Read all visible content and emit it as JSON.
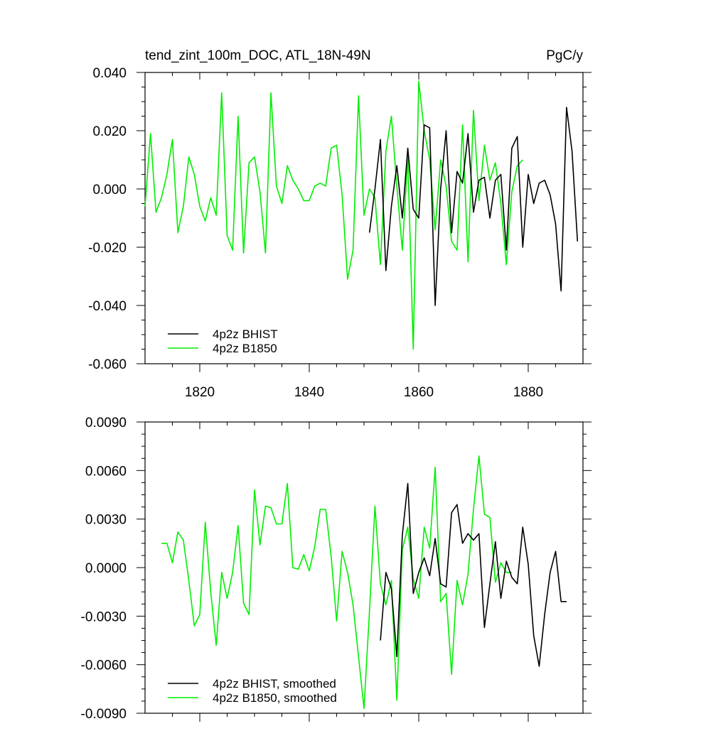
{
  "chart_data": [
    {
      "type": "line",
      "title": "tend_zint_100m_DOC, ATL_18N-49N",
      "units": "PgC/y",
      "xlim": [
        1810,
        1890
      ],
      "ylim": [
        -0.06,
        0.04
      ],
      "xticks": [
        1820,
        1840,
        1860,
        1880
      ],
      "xtick_labels": [
        "1820",
        "1840",
        "1860",
        "1880"
      ],
      "yticks": [
        -0.06,
        -0.04,
        -0.02,
        0.0,
        0.02,
        0.04
      ],
      "ytick_labels": [
        "-0.060",
        "-0.040",
        "-0.020",
        "0.000",
        "0.020",
        "0.040"
      ],
      "legend_placement": "bottom-left",
      "series": [
        {
          "name": "4p2z BHIST",
          "color": "#000000",
          "x": [
            1851,
            1852,
            1853,
            1854,
            1855,
            1856,
            1857,
            1858,
            1859,
            1860,
            1861,
            1862,
            1863,
            1864,
            1865,
            1866,
            1867,
            1868,
            1869,
            1870,
            1871,
            1872,
            1873,
            1874,
            1875,
            1876,
            1877,
            1878,
            1879,
            1880,
            1881,
            1882,
            1883,
            1884,
            1885,
            1886,
            1887,
            1888,
            1889
          ],
          "y": [
            -0.015,
            0.0,
            0.017,
            -0.028,
            -0.006,
            0.008,
            -0.01,
            0.014,
            -0.007,
            -0.01,
            0.022,
            0.021,
            -0.04,
            0.0,
            0.02,
            -0.015,
            0.006,
            0.002,
            0.019,
            -0.008,
            0.003,
            0.004,
            -0.01,
            0.003,
            0.005,
            -0.021,
            0.014,
            0.018,
            -0.02,
            0.005,
            -0.005,
            0.002,
            0.003,
            -0.002,
            -0.012,
            -0.035,
            0.028,
            0.013,
            -0.018
          ]
        },
        {
          "name": "4p2z B1850",
          "color": "#00ee00",
          "x": [
            1810,
            1811,
            1812,
            1813,
            1814,
            1815,
            1816,
            1817,
            1818,
            1819,
            1820,
            1821,
            1822,
            1823,
            1824,
            1825,
            1826,
            1827,
            1828,
            1829,
            1830,
            1831,
            1832,
            1833,
            1834,
            1835,
            1836,
            1837,
            1838,
            1839,
            1840,
            1841,
            1842,
            1843,
            1844,
            1845,
            1846,
            1847,
            1848,
            1849,
            1850,
            1851,
            1852,
            1853,
            1854,
            1855,
            1856,
            1857,
            1858,
            1859,
            1860,
            1861,
            1862,
            1863,
            1864,
            1865,
            1866,
            1867,
            1868,
            1869,
            1870,
            1871,
            1872,
            1873,
            1874,
            1875,
            1876,
            1877,
            1878,
            1879
          ],
          "y": [
            -0.006,
            0.019,
            -0.008,
            -0.003,
            0.005,
            0.017,
            -0.015,
            -0.006,
            0.011,
            0.005,
            -0.006,
            -0.011,
            -0.003,
            -0.009,
            0.033,
            -0.016,
            -0.021,
            0.025,
            -0.022,
            0.009,
            0.011,
            -0.001,
            -0.022,
            0.033,
            0.001,
            -0.005,
            0.008,
            0.003,
            0.0,
            -0.004,
            -0.004,
            0.001,
            0.002,
            0.001,
            0.014,
            0.015,
            -0.002,
            -0.031,
            -0.021,
            0.032,
            -0.009,
            0.0,
            -0.003,
            -0.026,
            0.013,
            0.025,
            0.001,
            -0.021,
            0.011,
            -0.055,
            0.037,
            0.02,
            0.01,
            -0.014,
            0.01,
            0.001,
            -0.018,
            -0.021,
            0.022,
            -0.025,
            0.027,
            -0.004,
            0.015,
            0.003,
            0.009,
            -0.005,
            -0.026,
            -0.001,
            0.008,
            0.01
          ]
        }
      ]
    },
    {
      "type": "line",
      "title": "",
      "xlim": [
        1810,
        1890
      ],
      "ylim": [
        -0.009,
        0.009
      ],
      "xticks": [
        1820,
        1840,
        1860,
        1880
      ],
      "yticks": [
        -0.009,
        -0.006,
        -0.003,
        0.0,
        0.003,
        0.006,
        0.009
      ],
      "ytick_labels": [
        "-0.0090",
        "-0.0060",
        "-0.0030",
        "0.0000",
        "0.0030",
        "0.0060",
        "0.0090"
      ],
      "legend_placement": "bottom-left",
      "series": [
        {
          "name": "4p2z BHIST, smoothed",
          "color": "#000000",
          "x": [
            1853,
            1854,
            1855,
            1856,
            1857,
            1858,
            1859,
            1860,
            1861,
            1862,
            1863,
            1864,
            1865,
            1866,
            1867,
            1868,
            1869,
            1870,
            1871,
            1872,
            1873,
            1874,
            1875,
            1876,
            1877,
            1878,
            1879,
            1880,
            1881,
            1882,
            1883,
            1884,
            1885,
            1886,
            1887
          ],
          "y": [
            -0.0045,
            -0.0003,
            -0.0013,
            -0.0055,
            0.002,
            0.0052,
            -0.0016,
            -0.0003,
            0.0006,
            -0.0005,
            0.0018,
            -0.001,
            -0.0012,
            0.0034,
            0.0039,
            0.0015,
            0.0021,
            0.0017,
            0.0021,
            -0.0037,
            -0.001,
            0.0016,
            -0.0019,
            0.0004,
            -0.0006,
            -0.001,
            0.0025,
            0.0002,
            -0.0042,
            -0.0061,
            -0.0029,
            -0.0003,
            0.001,
            -0.0021,
            -0.0021
          ]
        },
        {
          "name": "4p2z B1850, smoothed",
          "color": "#00ee00",
          "x": [
            1813,
            1814,
            1815,
            1816,
            1817,
            1818,
            1819,
            1820,
            1821,
            1822,
            1823,
            1824,
            1825,
            1826,
            1827,
            1828,
            1829,
            1830,
            1831,
            1832,
            1833,
            1834,
            1835,
            1836,
            1837,
            1838,
            1839,
            1840,
            1841,
            1842,
            1843,
            1844,
            1845,
            1846,
            1847,
            1848,
            1849,
            1850,
            1851,
            1852,
            1853,
            1854,
            1855,
            1856,
            1857,
            1858,
            1859,
            1860,
            1861,
            1862,
            1863,
            1864,
            1865,
            1866,
            1867,
            1868,
            1869,
            1870,
            1871,
            1872,
            1873,
            1874,
            1875,
            1876,
            1877
          ],
          "y": [
            0.0015,
            0.0015,
            0.0003,
            0.0022,
            0.0017,
            -0.0008,
            -0.0036,
            -0.0029,
            0.0028,
            -0.0015,
            -0.0048,
            -0.0003,
            -0.0019,
            -0.0003,
            0.0026,
            -0.0022,
            -0.0029,
            0.0048,
            0.0014,
            0.0038,
            0.0037,
            0.0027,
            0.0027,
            0.0052,
            0.0,
            -0.0001,
            0.0008,
            -0.0002,
            0.0013,
            0.0036,
            0.0036,
            0.0007,
            -0.0033,
            0.001,
            -0.0003,
            -0.0023,
            -0.0055,
            -0.0087,
            -0.0027,
            0.0038,
            -0.001,
            -0.0023,
            -0.0008,
            -0.0082,
            0.0011,
            0.0025,
            -0.0007,
            -0.0019,
            0.0025,
            0.0012,
            0.0062,
            -0.0021,
            -0.0016,
            -0.0066,
            -0.0008,
            -0.0023,
            -0.0004,
            0.0036,
            0.0069,
            0.0033,
            0.0031,
            -0.0009,
            0.0003,
            -0.0003,
            -0.0003
          ]
        }
      ]
    }
  ]
}
